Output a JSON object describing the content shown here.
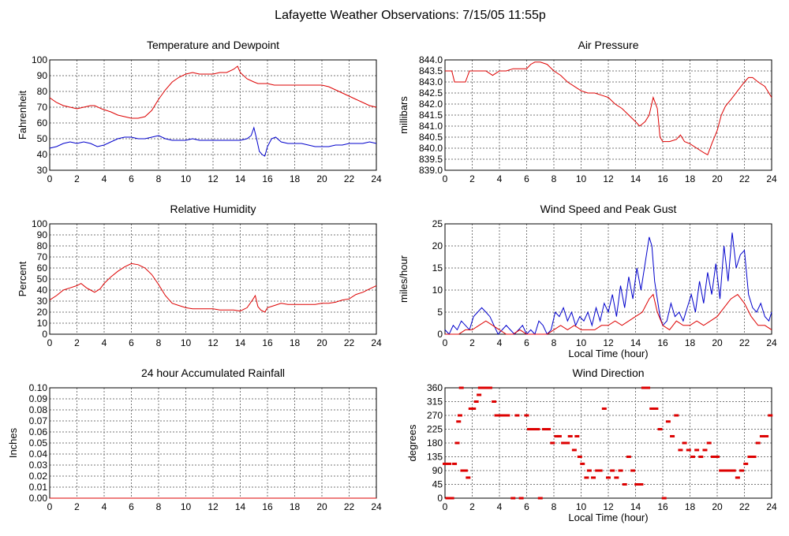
{
  "page": {
    "title": "Lafayette Weather Observations: 7/15/05 11:55p"
  },
  "colors": {
    "red": "#dd0000",
    "blue": "#0000cc",
    "grid": "#777777",
    "frame": "#000000"
  },
  "chart_data": [
    {
      "type": "line",
      "title": "Temperature and Dewpoint",
      "xlabel": "",
      "ylabel": "Fahrenheit",
      "xlim": [
        0,
        24
      ],
      "ylim": [
        30,
        100
      ],
      "x_ticks": [
        0,
        2,
        4,
        6,
        8,
        10,
        12,
        14,
        16,
        18,
        20,
        22,
        24
      ],
      "y_ticks": [
        30,
        40,
        50,
        60,
        70,
        80,
        90,
        100
      ],
      "grid": true,
      "series": [
        {
          "color": "red",
          "x": [
            0,
            0.5,
            1,
            1.5,
            2,
            2.5,
            3,
            3.3,
            3.8,
            4.5,
            5,
            5.5,
            6,
            6.5,
            7,
            7.5,
            8,
            8.5,
            9,
            9.5,
            10,
            10.5,
            11,
            11.5,
            12,
            12.5,
            13,
            13.5,
            13.8,
            14,
            14.5,
            15,
            15.3,
            15.7,
            16,
            16.5,
            17,
            18,
            19,
            20,
            20.5,
            21,
            21.5,
            22,
            22.5,
            23,
            23.5,
            24
          ],
          "values": [
            76,
            73,
            71,
            70,
            69,
            70,
            71,
            71,
            69,
            67,
            65,
            64,
            63,
            63,
            64,
            68,
            75,
            81,
            86,
            89,
            91,
            92,
            91,
            91,
            91,
            92,
            92,
            94,
            96,
            92,
            88,
            86,
            85,
            85,
            85,
            84,
            84,
            84,
            84,
            84,
            83,
            81,
            79,
            77,
            75,
            73,
            71,
            70
          ]
        },
        {
          "color": "blue",
          "x": [
            0,
            0.5,
            1,
            1.5,
            2,
            2.5,
            3,
            3.5,
            4,
            4.5,
            5,
            5.5,
            6,
            6.5,
            7,
            7.5,
            8,
            8.5,
            9,
            9.5,
            10,
            10.5,
            11,
            11.5,
            12,
            12.5,
            13,
            13.5,
            14,
            14.5,
            14.8,
            15,
            15.2,
            15.4,
            15.6,
            15.8,
            16,
            16.3,
            16.6,
            17,
            17.5,
            18,
            18.5,
            19,
            19.5,
            20,
            20.5,
            21,
            21.5,
            22,
            22.5,
            23,
            23.5,
            24
          ],
          "values": [
            44,
            45,
            47,
            48,
            47,
            48,
            47,
            45,
            46,
            48,
            50,
            51,
            51,
            50,
            50,
            51,
            52,
            50,
            49,
            49,
            49,
            50,
            49,
            49,
            49,
            49,
            49,
            49,
            49,
            50,
            52,
            57,
            50,
            42,
            40,
            39,
            45,
            50,
            51,
            48,
            47,
            47,
            47,
            46,
            45,
            45,
            45,
            46,
            46,
            47,
            47,
            47,
            48,
            47
          ]
        }
      ]
    },
    {
      "type": "line",
      "title": "Air Pressure",
      "xlabel": "",
      "ylabel": "millibars",
      "xlim": [
        0,
        24
      ],
      "ylim": [
        839.0,
        844.0
      ],
      "x_ticks": [
        0,
        2,
        4,
        6,
        8,
        10,
        12,
        14,
        16,
        18,
        20,
        22,
        24
      ],
      "y_ticks": [
        "839.0",
        "839.5",
        "840.0",
        "840.5",
        "841.0",
        "841.5",
        "842.0",
        "842.5",
        "843.0",
        "843.5",
        "844.0"
      ],
      "grid": true,
      "series": [
        {
          "color": "red",
          "x": [
            0,
            0.5,
            0.7,
            1,
            1.5,
            1.8,
            2,
            2.5,
            3,
            3.5,
            4,
            4.5,
            5,
            5.5,
            6,
            6.3,
            6.6,
            7,
            7.5,
            8,
            8.5,
            9,
            9.5,
            10,
            10.5,
            11,
            11.5,
            12,
            12.5,
            13,
            13.5,
            14,
            14.3,
            14.7,
            15,
            15.3,
            15.6,
            15.8,
            16,
            16.5,
            17,
            17.3,
            17.6,
            18,
            18.5,
            19,
            19.3,
            19.6,
            20,
            20.3,
            20.6,
            21,
            21.5,
            22,
            22.3,
            22.6,
            23,
            23.5,
            24
          ],
          "values": [
            843.5,
            843.5,
            843.0,
            843.0,
            843.0,
            843.5,
            843.5,
            843.5,
            843.5,
            843.3,
            843.5,
            843.5,
            843.6,
            843.6,
            843.6,
            843.8,
            843.9,
            843.9,
            843.8,
            843.5,
            843.3,
            843.0,
            842.8,
            842.6,
            842.5,
            842.5,
            842.4,
            842.3,
            842.0,
            841.8,
            841.5,
            841.2,
            841.0,
            841.2,
            841.5,
            842.3,
            841.8,
            840.5,
            840.3,
            840.3,
            840.4,
            840.6,
            840.3,
            840.2,
            840.0,
            839.8,
            839.7,
            840.2,
            840.8,
            841.5,
            841.9,
            842.2,
            842.6,
            843.0,
            843.2,
            843.2,
            843.0,
            842.8,
            842.3
          ]
        }
      ]
    },
    {
      "type": "line",
      "title": "Relative Humidity",
      "xlabel": "",
      "ylabel": "Percent",
      "xlim": [
        0,
        24
      ],
      "ylim": [
        0,
        100
      ],
      "x_ticks": [
        0,
        2,
        4,
        6,
        8,
        10,
        12,
        14,
        16,
        18,
        20,
        22,
        24
      ],
      "y_ticks": [
        0,
        10,
        20,
        30,
        40,
        50,
        60,
        70,
        80,
        90,
        100
      ],
      "grid": true,
      "series": [
        {
          "color": "red",
          "x": [
            0,
            0.5,
            1,
            1.5,
            2,
            2.3,
            2.7,
            3,
            3.3,
            3.7,
            4,
            4.5,
            5,
            5.5,
            6,
            6.5,
            7,
            7.5,
            8,
            8.5,
            9,
            9.5,
            10,
            10.5,
            11,
            11.5,
            12,
            12.5,
            13,
            13.5,
            14,
            14.5,
            14.9,
            15.1,
            15.3,
            15.5,
            15.8,
            16,
            16.5,
            17,
            17.5,
            18,
            18.5,
            19,
            19.5,
            20,
            20.5,
            21,
            21.5,
            22,
            22.5,
            23,
            23.5,
            24
          ],
          "values": [
            31,
            35,
            40,
            42,
            44,
            46,
            42,
            40,
            38,
            41,
            46,
            52,
            57,
            61,
            64,
            63,
            60,
            54,
            45,
            35,
            28,
            26,
            24,
            23,
            23,
            23,
            23,
            22,
            22,
            22,
            21,
            24,
            31,
            35,
            25,
            22,
            20,
            24,
            26,
            28,
            27,
            27,
            27,
            27,
            27,
            28,
            28,
            29,
            31,
            32,
            36,
            38,
            41,
            44
          ]
        }
      ]
    },
    {
      "type": "line",
      "title": "Wind Speed and Peak Gust",
      "xlabel": "Local Time (hour)",
      "ylabel": "miles/hour",
      "xlim": [
        0,
        24
      ],
      "ylim": [
        0,
        25
      ],
      "x_ticks": [
        0,
        2,
        4,
        6,
        8,
        10,
        12,
        14,
        16,
        18,
        20,
        22,
        24
      ],
      "y_ticks": [
        0,
        5,
        10,
        15,
        20,
        25
      ],
      "grid": true,
      "series": [
        {
          "color": "blue",
          "x": [
            0,
            0.3,
            0.6,
            0.9,
            1.2,
            1.5,
            1.8,
            2.1,
            2.4,
            2.7,
            3,
            3.3,
            3.6,
            3.9,
            4.2,
            4.5,
            4.8,
            5.1,
            5.4,
            5.7,
            6,
            6.3,
            6.6,
            6.9,
            7.2,
            7.5,
            7.8,
            8.1,
            8.4,
            8.7,
            9,
            9.3,
            9.6,
            9.9,
            10.2,
            10.5,
            10.8,
            11.1,
            11.4,
            11.7,
            12,
            12.3,
            12.6,
            12.9,
            13.2,
            13.5,
            13.8,
            14.1,
            14.4,
            14.7,
            15,
            15.2,
            15.4,
            15.6,
            15.8,
            16,
            16.3,
            16.6,
            16.9,
            17.2,
            17.5,
            17.8,
            18.1,
            18.4,
            18.7,
            19,
            19.3,
            19.6,
            19.9,
            20.2,
            20.5,
            20.8,
            21.1,
            21.4,
            21.7,
            22,
            22.3,
            22.6,
            22.9,
            23.2,
            23.5,
            23.8,
            24
          ],
          "values": [
            1,
            0,
            2,
            1,
            3,
            2,
            1,
            4,
            5,
            6,
            5,
            4,
            2,
            0,
            1,
            2,
            1,
            0,
            1,
            2,
            0,
            1,
            0,
            3,
            2,
            0,
            1,
            5,
            4,
            6,
            3,
            5,
            2,
            4,
            3,
            5,
            2,
            6,
            3,
            7,
            5,
            9,
            4,
            11,
            6,
            13,
            8,
            15,
            10,
            16,
            22,
            20,
            12,
            8,
            4,
            2,
            3,
            7,
            4,
            5,
            3,
            6,
            9,
            5,
            12,
            7,
            14,
            9,
            16,
            8,
            20,
            12,
            23,
            15,
            18,
            19,
            9,
            6,
            5,
            7,
            4,
            3,
            5
          ]
        },
        {
          "color": "red",
          "x": [
            0,
            0.5,
            1,
            1.5,
            2,
            2.5,
            3,
            3.5,
            4,
            4.5,
            5,
            5.5,
            6,
            6.5,
            7,
            7.5,
            8,
            8.5,
            9,
            9.5,
            10,
            10.5,
            11,
            11.5,
            12,
            12.5,
            13,
            13.5,
            14,
            14.5,
            15,
            15.3,
            15.6,
            16,
            16.5,
            17,
            17.5,
            18,
            18.5,
            19,
            19.5,
            20,
            20.5,
            21,
            21.5,
            22,
            22.5,
            23,
            23.5,
            24
          ],
          "values": [
            0,
            0,
            0,
            1,
            1,
            2,
            3,
            2,
            1,
            0,
            0,
            1,
            0,
            0,
            0,
            0,
            1,
            2,
            1,
            2,
            1,
            1,
            1,
            2,
            2,
            3,
            2,
            3,
            4,
            5,
            8,
            9,
            5,
            2,
            1,
            3,
            2,
            2,
            3,
            2,
            3,
            4,
            6,
            8,
            9,
            7,
            4,
            2,
            2,
            1
          ]
        }
      ]
    },
    {
      "type": "line",
      "title": "24 hour Accumulated Rainfall",
      "xlabel": "",
      "ylabel": "Inches",
      "xlim": [
        0,
        24
      ],
      "ylim": [
        0.0,
        0.1
      ],
      "x_ticks": [
        0,
        2,
        4,
        6,
        8,
        10,
        12,
        14,
        16,
        18,
        20,
        22,
        24
      ],
      "y_ticks": [
        "0.00",
        "0.01",
        "0.02",
        "0.03",
        "0.04",
        "0.05",
        "0.06",
        "0.07",
        "0.08",
        "0.09",
        "0.10"
      ],
      "grid": true,
      "series": [
        {
          "color": "red",
          "x": [
            0,
            24
          ],
          "values": [
            0.0,
            0.0
          ]
        }
      ]
    },
    {
      "type": "scatter",
      "title": "Wind Direction",
      "xlabel": "Local Time (hour)",
      "ylabel": "degrees",
      "xlim": [
        0,
        24
      ],
      "ylim": [
        0,
        360
      ],
      "x_ticks": [
        0,
        2,
        4,
        6,
        8,
        10,
        12,
        14,
        16,
        18,
        20,
        22,
        24
      ],
      "y_ticks": [
        0,
        45,
        90,
        135,
        180,
        225,
        270,
        315,
        360
      ],
      "grid": true,
      "series": [
        {
          "color": "red",
          "x": [
            0,
            0.2,
            0.3,
            0.5,
            0.7,
            0.9,
            1,
            1.1,
            1.2,
            1.3,
            1.5,
            1.7,
            1.9,
            2.1,
            2.3,
            2.5,
            2.6,
            2.8,
            3,
            3.3,
            3.6,
            3.8,
            4,
            4.3,
            4.6,
            5,
            5.3,
            5.6,
            6,
            6.2,
            6.5,
            6.8,
            7,
            7.3,
            7.6,
            7.9,
            8.2,
            8.4,
            8.7,
            9,
            9.2,
            9.5,
            9.7,
            9.9,
            10.1,
            10.4,
            10.6,
            10.9,
            11.2,
            11.4,
            11.7,
            12,
            12.3,
            12.6,
            12.9,
            13.2,
            13.5,
            13.8,
            14.1,
            14.4,
            14.6,
            14.9,
            15.2,
            15.5,
            15.8,
            16.1,
            16.4,
            16.7,
            17,
            17.3,
            17.6,
            17.9,
            18.2,
            18.5,
            18.8,
            19.1,
            19.4,
            19.7,
            20,
            20.3,
            20.6,
            20.9,
            21.2,
            21.5,
            21.8,
            22.1,
            22.4,
            22.7,
            23,
            23.3,
            23.6,
            23.9
          ],
          "values": [
            112,
            0,
            112,
            0,
            112,
            180,
            250,
            270,
            360,
            90,
            90,
            67,
            292,
            292,
            315,
            337,
            360,
            360,
            360,
            360,
            315,
            270,
            270,
            270,
            270,
            0,
            270,
            0,
            270,
            225,
            225,
            225,
            0,
            225,
            225,
            180,
            202,
            202,
            180,
            180,
            202,
            157,
            202,
            135,
            112,
            67,
            90,
            67,
            90,
            90,
            292,
            67,
            90,
            67,
            90,
            45,
            135,
            90,
            45,
            45,
            360,
            360,
            292,
            292,
            225,
            0,
            250,
            202,
            270,
            157,
            180,
            157,
            135,
            157,
            135,
            157,
            180,
            135,
            135,
            90,
            90,
            90,
            90,
            67,
            90,
            112,
            135,
            135,
            180,
            202,
            202,
            270
          ]
        }
      ]
    }
  ]
}
